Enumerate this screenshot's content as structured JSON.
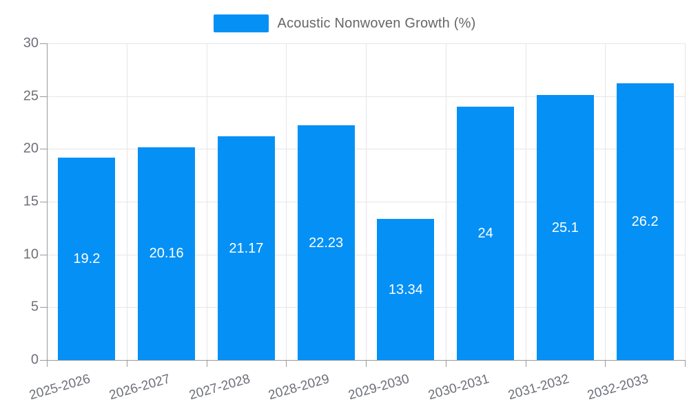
{
  "chart_data": {
    "type": "bar",
    "title": "",
    "categories": [
      "2025-2026",
      "2026-2027",
      "2027-2028",
      "2028-2029",
      "2029-2030",
      "2030-2031",
      "2031-2032",
      "2032-2033"
    ],
    "series": [
      {
        "name": "Acoustic Nonwoven Growth (%)",
        "values": [
          19.2,
          20.16,
          21.17,
          22.23,
          13.34,
          24,
          25.1,
          26.2
        ]
      }
    ],
    "value_labels": [
      "19.2",
      "20.16",
      "21.17",
      "22.23",
      "13.34",
      "24",
      "25.1",
      "26.2"
    ],
    "xlabel": "",
    "ylabel": "",
    "ylim": [
      0,
      30
    ],
    "yticks": [
      0,
      5,
      10,
      15,
      20,
      25,
      30
    ],
    "grid": true,
    "legend_position": "top-center"
  },
  "colors": {
    "bar": "#0590f5",
    "grid": "#e5e5e9",
    "axis": "#999999",
    "tick_label": "#6e7079",
    "legend_text": "#666666",
    "bar_label": "#ffffff",
    "background": "#ffffff"
  }
}
